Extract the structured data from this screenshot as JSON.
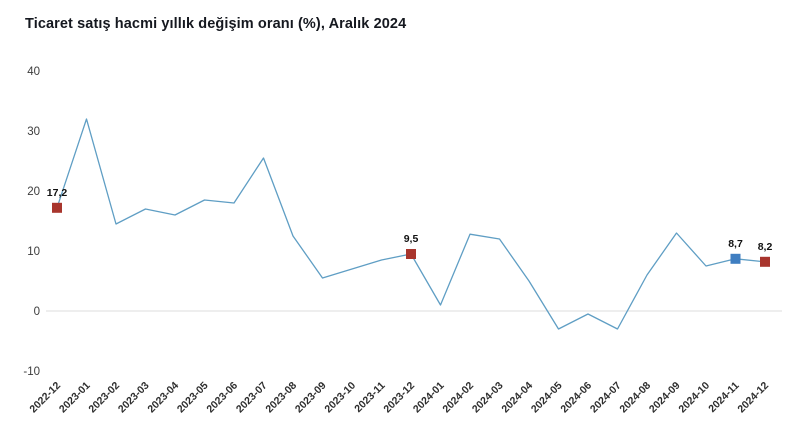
{
  "title": "Ticaret satış hacmi yıllık değişim oranı (%), Aralık 2024",
  "chart_data": {
    "type": "line",
    "categories": [
      "2022-12",
      "2023-01",
      "2023-02",
      "2023-03",
      "2023-04",
      "2023-05",
      "2023-06",
      "2023-07",
      "2023-08",
      "2023-09",
      "2023-10",
      "2023-11",
      "2023-12",
      "2024-01",
      "2024-02",
      "2024-03",
      "2024-04",
      "2024-05",
      "2024-06",
      "2024-07",
      "2024-08",
      "2024-09",
      "2024-10",
      "2024-11",
      "2024-12"
    ],
    "values": [
      17.2,
      32,
      14.5,
      17,
      16,
      18.5,
      18,
      25.5,
      12.5,
      5.5,
      7,
      8.5,
      9.5,
      1,
      12.8,
      12,
      5,
      -3,
      -0.5,
      -3,
      6,
      13,
      7.5,
      8.7,
      8.2
    ],
    "ylabel": "",
    "xlabel": "",
    "ylim": [
      -10,
      40
    ],
    "yticks": [
      40,
      30,
      20,
      10,
      0,
      -10
    ],
    "grid": "zero-line-only",
    "legend": "none",
    "line_color": "#5f9ec4",
    "zero_line_color": "#dcdcdc",
    "annotations": [
      {
        "index": 0,
        "category": "2022-12",
        "label": "17,2",
        "marker_color": "#a8352d"
      },
      {
        "index": 12,
        "category": "2023-12",
        "label": "9,5",
        "marker_color": "#a8352d"
      },
      {
        "index": 23,
        "category": "2024-11",
        "label": "8,7",
        "marker_color": "#3f7ec1"
      },
      {
        "index": 24,
        "category": "2024-12",
        "label": "8,2",
        "marker_color": "#a8352d"
      }
    ]
  }
}
